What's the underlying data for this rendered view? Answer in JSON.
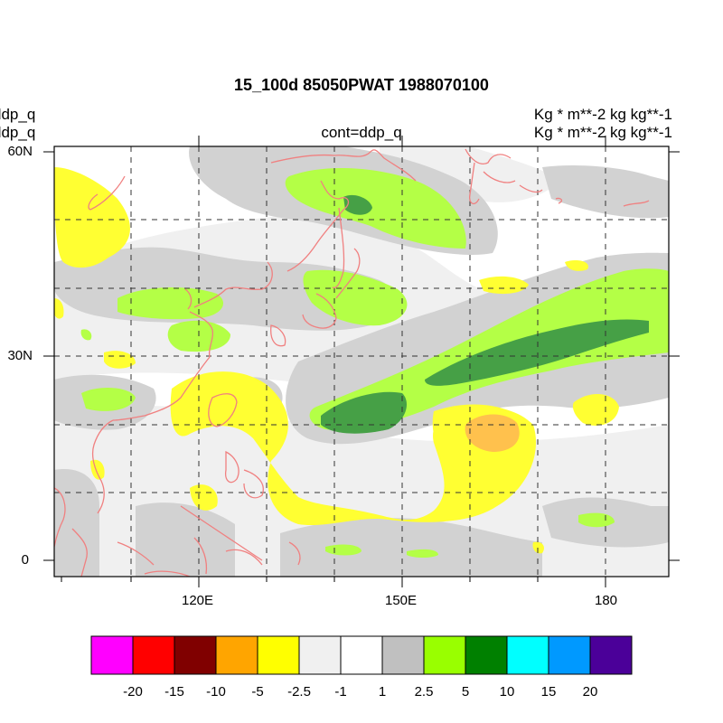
{
  "title": "15_100d 85050PWAT  1988070100",
  "left_labels": [
    "ddp_q",
    "ddp_q"
  ],
  "center_label": "cont=ddp_q",
  "right_labels": [
    "Kg  * m**-2 kg kg**-1",
    "Kg  * m**-2 kg kg**-1"
  ],
  "axes": {
    "x_ticks": [
      "120E",
      "150E",
      "180"
    ],
    "y_ticks": [
      "60N",
      "30N",
      "0"
    ]
  },
  "colorbar": {
    "colors": [
      "#ff00ff",
      "#ff0000",
      "#800000",
      "#ffa500",
      "#ffff00",
      "#f0f0f0",
      "#ffffff",
      "#c0c0c0",
      "#99ff00",
      "#008000",
      "#00ffff",
      "#0099ff",
      "#4b0099"
    ],
    "labels": [
      "-20",
      "-15",
      "-10",
      "-5",
      "-2.5",
      "-1",
      "1",
      "2.5",
      "5",
      "10",
      "15",
      "20"
    ]
  },
  "colors": {
    "coast": "#f08080",
    "light_gray": "#f0f0f0",
    "gray": "#d2d2d2",
    "light_green": "#b4ff46",
    "dark_green": "#46a046",
    "yellow": "#ffff32",
    "orange": "#ffc14d"
  }
}
